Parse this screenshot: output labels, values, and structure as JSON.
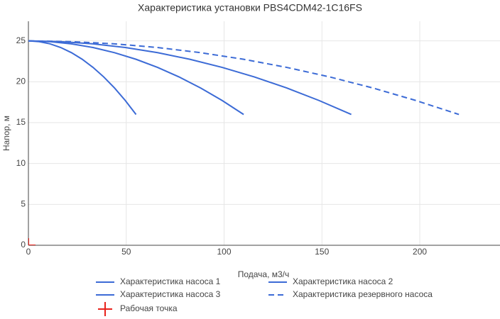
{
  "chart_data": {
    "type": "line",
    "title": "Характеристика установки PBS4CDM42-1C16FS",
    "x_label": "Подача, м3/ч",
    "y_label": "Напор, м",
    "xlim": [
      0,
      241
    ],
    "ylim": [
      0,
      27.4
    ],
    "xticks": [
      0,
      50,
      100,
      150,
      200
    ],
    "yticks": [
      0,
      5,
      10,
      15,
      20,
      25
    ],
    "grid": true,
    "series": [
      {
        "name": "Характеристика насоса 1",
        "color": "#3c6bd6",
        "dash": "solid",
        "x": [
          0,
          5.5,
          11,
          16.5,
          22,
          27.5,
          33,
          38.5,
          44,
          49.5,
          55
        ],
        "values": [
          25,
          24.91,
          24.64,
          24.19,
          23.56,
          22.75,
          21.76,
          20.59,
          19.24,
          17.71,
          16
        ]
      },
      {
        "name": "Характеристика насоса 2",
        "color": "#3c6bd6",
        "dash": "solid",
        "x": [
          0,
          11,
          22,
          33,
          44,
          55,
          66,
          77,
          88,
          99,
          110
        ],
        "values": [
          25,
          24.91,
          24.64,
          24.19,
          23.56,
          22.75,
          21.76,
          20.59,
          19.24,
          17.71,
          16
        ]
      },
      {
        "name": "Характеристика насоса 3",
        "color": "#3c6bd6",
        "dash": "solid",
        "x": [
          0,
          16.5,
          33,
          49.5,
          66,
          82.5,
          99,
          115.5,
          132,
          148.5,
          165
        ],
        "values": [
          25,
          24.91,
          24.64,
          24.19,
          23.56,
          22.75,
          21.76,
          20.59,
          19.24,
          17.71,
          16
        ]
      },
      {
        "name": "Характеристика резервного насоса",
        "color": "#3c6bd6",
        "dash": "dash",
        "x": [
          0,
          22,
          44,
          66,
          88,
          110,
          132,
          154,
          176,
          198,
          220
        ],
        "values": [
          25,
          24.91,
          24.64,
          24.19,
          23.56,
          22.75,
          21.76,
          20.59,
          19.24,
          17.71,
          16
        ]
      },
      {
        "name": "Рабочая точка",
        "color": "#e8221b",
        "marker": "cross",
        "x": [
          0
        ],
        "values": [
          0
        ]
      }
    ]
  }
}
